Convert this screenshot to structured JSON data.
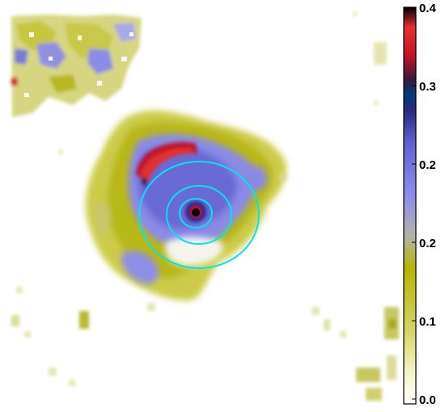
{
  "image": {
    "description_colormap": "yellow-white-blue-red-black",
    "contour_color": "#00e5f0"
  },
  "colorbar": {
    "ticks": [
      "0.0",
      "0.1",
      "0.2",
      "0.2",
      "0.3",
      "0.4"
    ],
    "colors": [
      "#ffffff",
      "#f6f6d2",
      "#d8d86a",
      "#b8b800",
      "#b0b0a0",
      "#8c8cf0",
      "#5a5ad0",
      "#2c2c8c",
      "#003070",
      "#3a1a3a",
      "#c01020",
      "#e02020",
      "#000000"
    ]
  }
}
